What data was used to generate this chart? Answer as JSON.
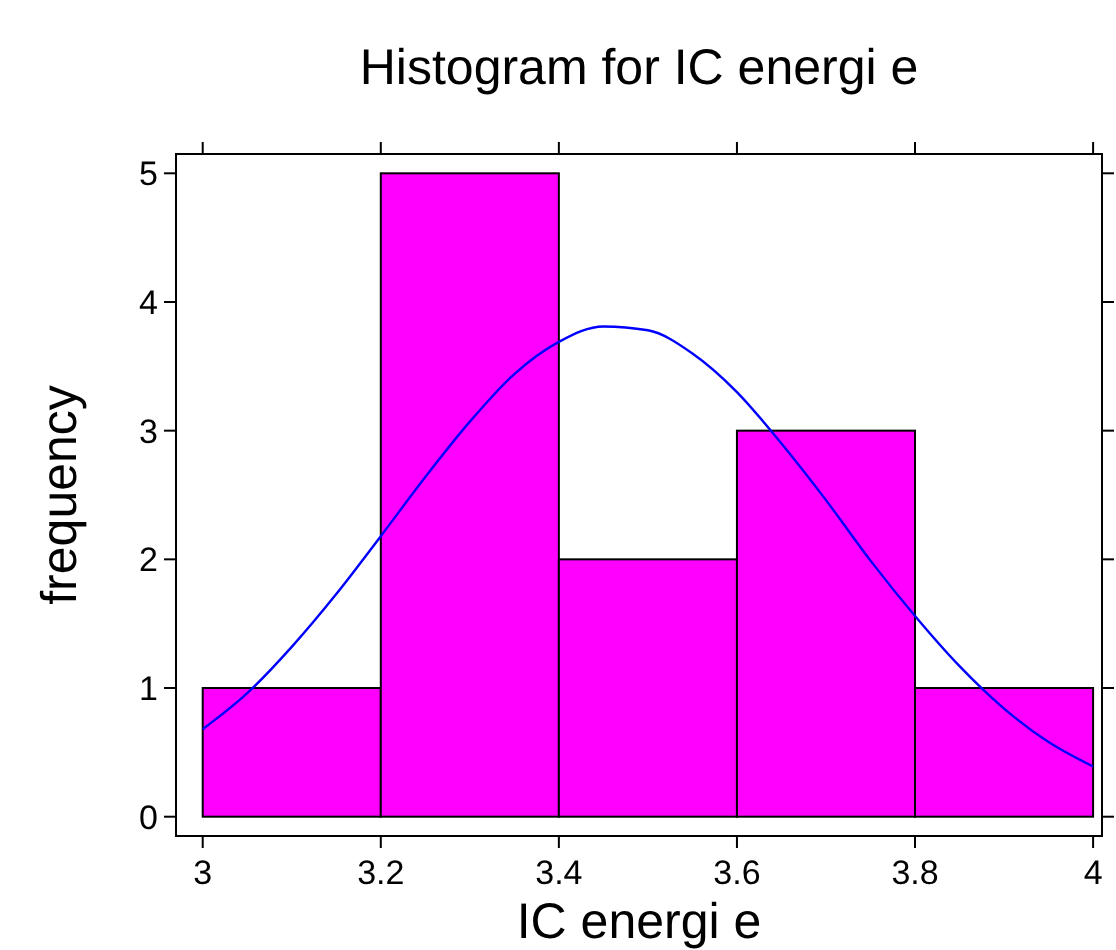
{
  "chart_data": {
    "type": "histogram",
    "title": "Histogram for IC energi e",
    "xlabel": "IC energi e",
    "ylabel": "frequency",
    "bins": [
      3,
      3.2,
      3.4,
      3.6,
      3.8,
      4
    ],
    "values": [
      1,
      5,
      2,
      3,
      1
    ],
    "color": "#ff00ff",
    "series": [
      {
        "type": "line",
        "color": "#0000ff",
        "x": [
          3,
          3.05,
          3.1,
          3.15,
          3.2,
          3.25,
          3.3,
          3.35,
          3.4,
          3.45,
          3.5,
          3.55,
          3.6,
          3.65,
          3.7,
          3.75,
          3.8,
          3.85,
          3.9,
          3.95,
          4
        ],
        "values": [
          0.68,
          0.96,
          1.32,
          1.73,
          2.18,
          2.64,
          3.07,
          3.44,
          3.69,
          3.81,
          3.78,
          3.6,
          3.3,
          2.9,
          2.46,
          1.99,
          1.56,
          1.17,
          0.84,
          0.58,
          0.39
        ]
      }
    ],
    "xlim": [
      2.97,
      4.01
    ],
    "ylim": [
      -0.15,
      5.15
    ],
    "xticks": [
      {
        "value": 3,
        "label": "3"
      },
      {
        "value": 3.2,
        "label": "3.2"
      },
      {
        "value": 3.4,
        "label": "3.4"
      },
      {
        "value": 3.6,
        "label": "3.6"
      },
      {
        "value": 3.8,
        "label": "3.8"
      },
      {
        "value": 4,
        "label": "4"
      }
    ],
    "yticks": [
      0,
      1,
      2,
      3,
      4,
      5
    ],
    "grid": false
  }
}
